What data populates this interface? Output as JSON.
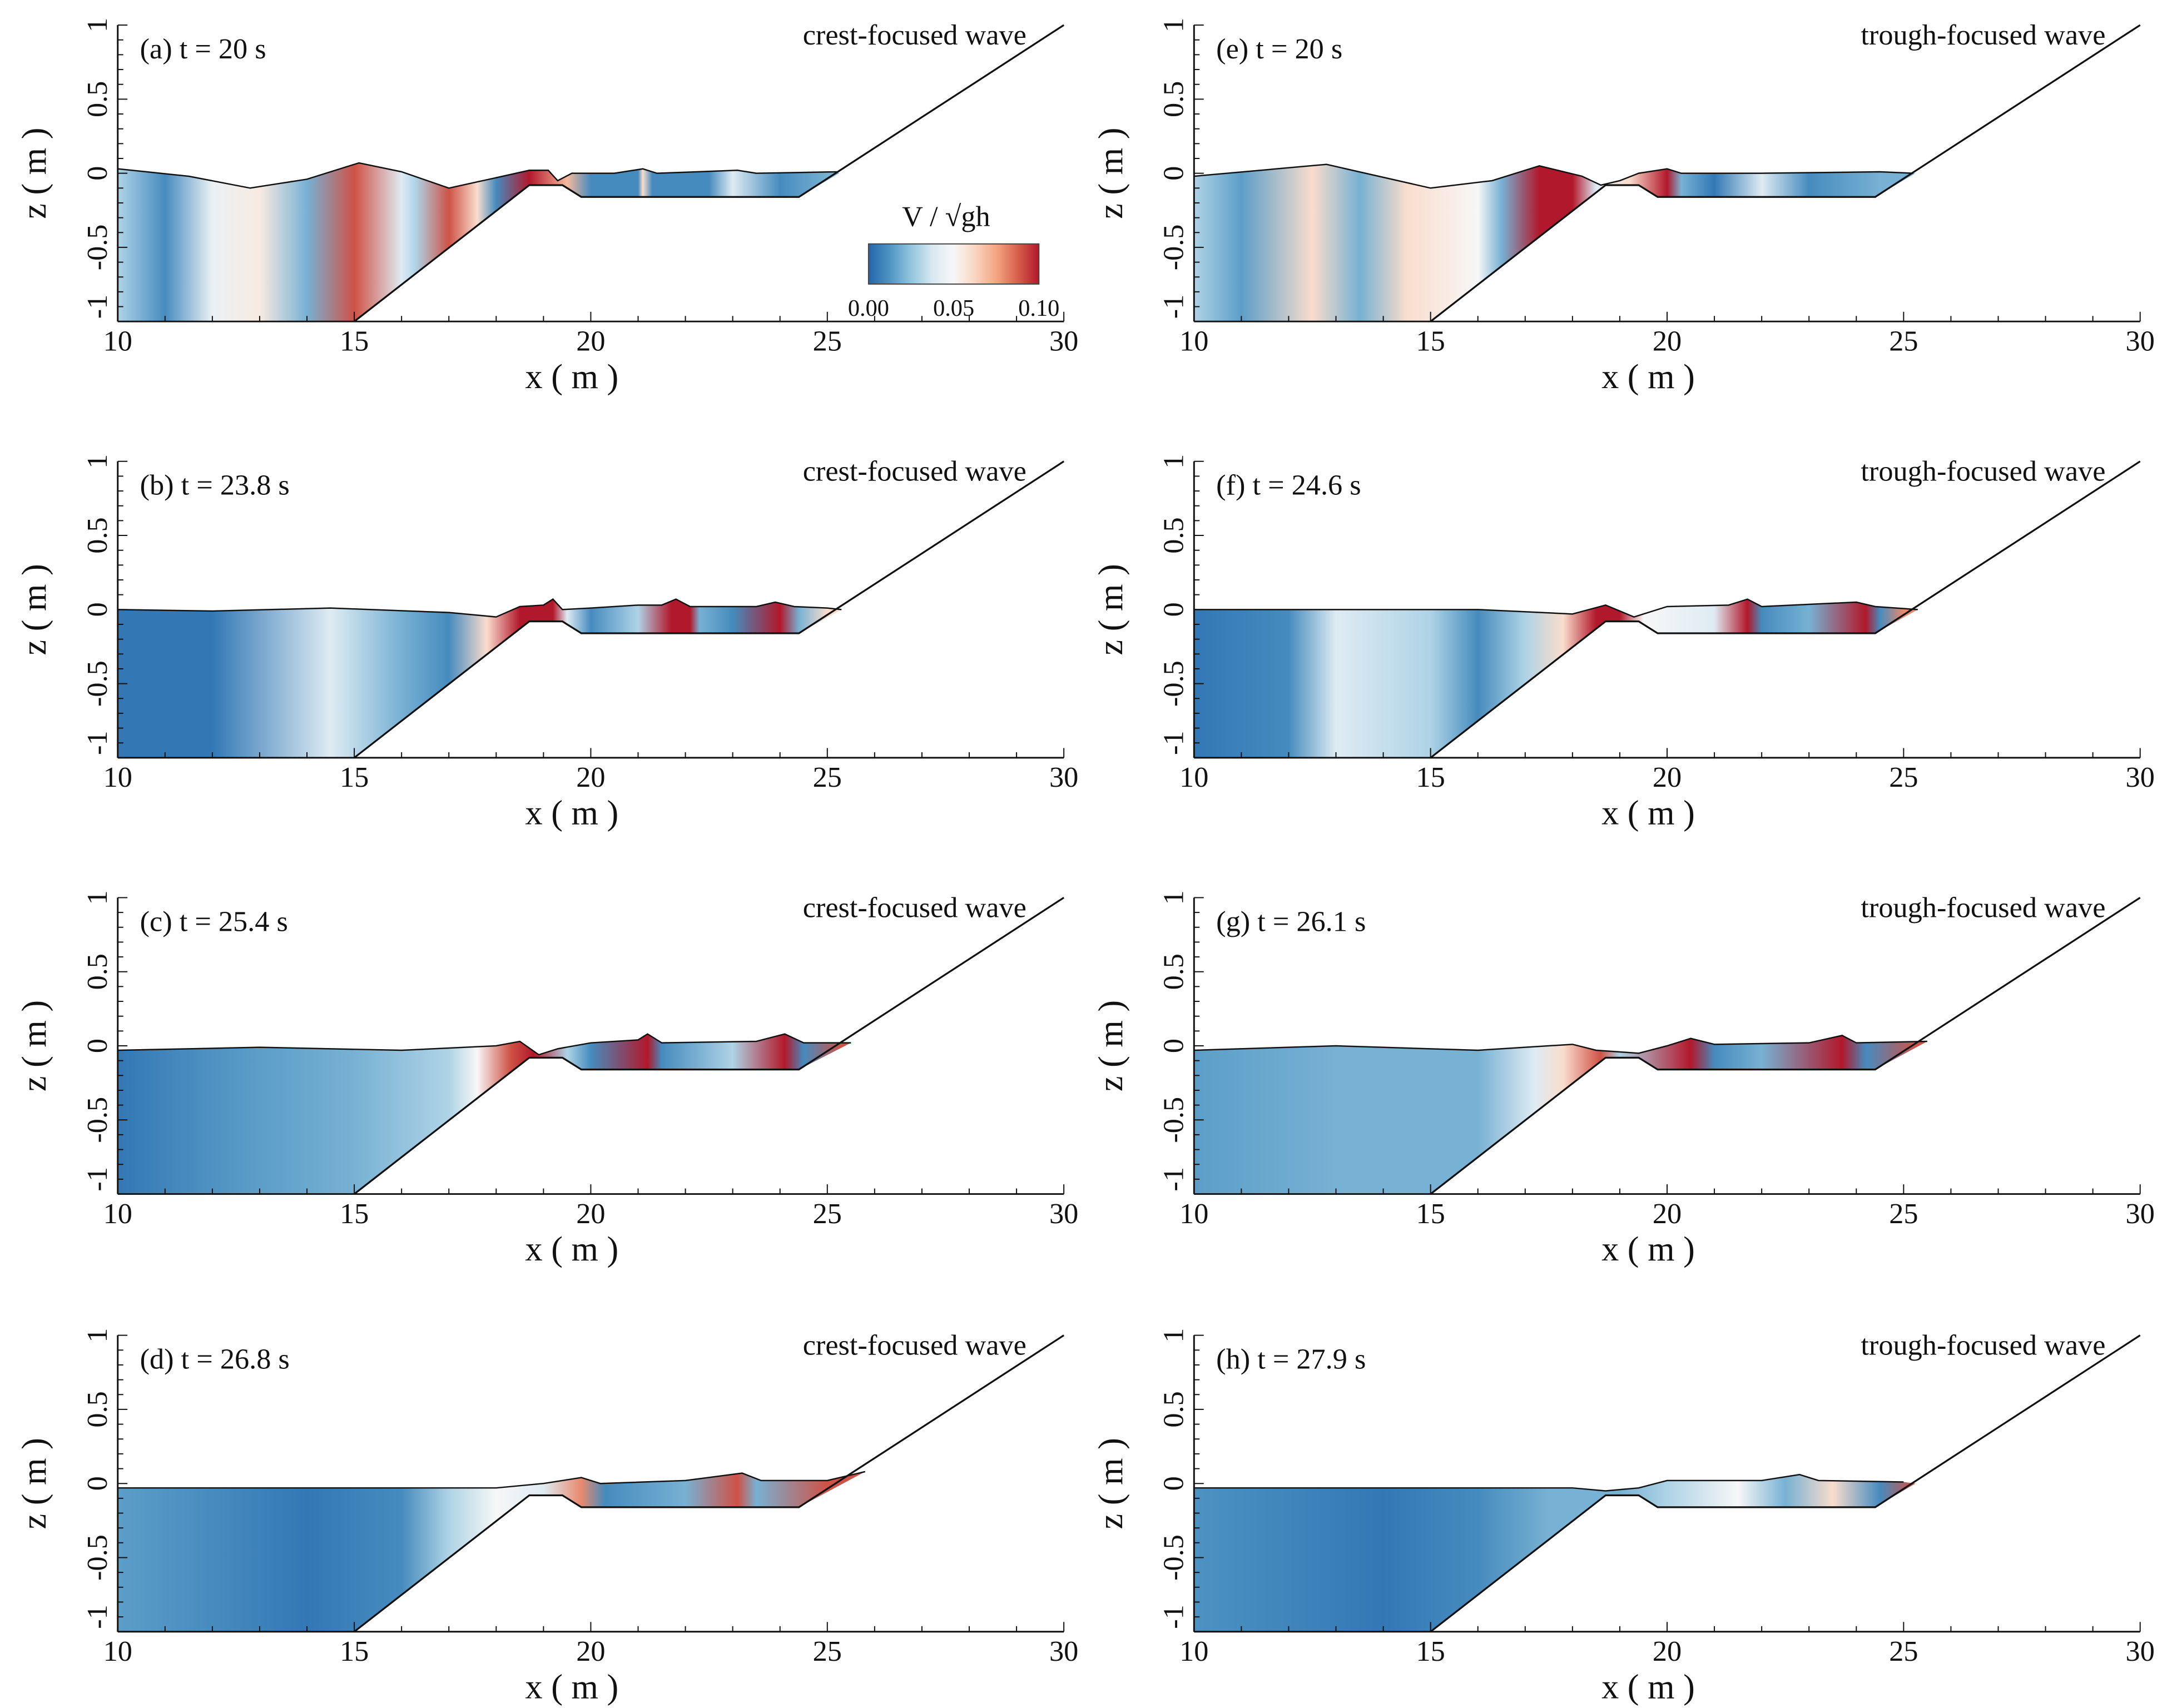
{
  "chart_data": {
    "type": "heatmap",
    "xlabel": "x ( m )",
    "ylabel": "z ( m )",
    "xlim": [
      10,
      30
    ],
    "ylim": [
      -1,
      1
    ],
    "xticks": [
      "10",
      "15",
      "20",
      "25",
      "30"
    ],
    "yticks": [
      "1",
      "0.5",
      "0",
      "-0.5",
      "-1"
    ],
    "colorbar": {
      "title": "V / √gh",
      "range": [
        0,
        0.1
      ],
      "ticks": [
        "0.00",
        "0.05",
        "0.10"
      ],
      "colors": [
        "#2166ac",
        "#4f94c3",
        "#92c5de",
        "#d8e8f2",
        "#f7f7f7",
        "#f9d6c3",
        "#f4a582",
        "#d6604d",
        "#b2182b"
      ]
    },
    "bathymetry": [
      [
        15,
        -1
      ],
      [
        18.7,
        -0.08
      ],
      [
        19.4,
        -0.08
      ],
      [
        19.8,
        -0.16
      ],
      [
        24.4,
        -0.16
      ],
      [
        30,
        1
      ]
    ],
    "panels": [
      {
        "label": "(a) t = 20 s",
        "wave": "crest-focused wave",
        "surface": [
          [
            10,
            0.03
          ],
          [
            11.5,
            -0.02
          ],
          [
            12.8,
            -0.1
          ],
          [
            14,
            -0.04
          ],
          [
            15.1,
            0.07
          ],
          [
            16,
            0.01
          ],
          [
            17,
            -0.1
          ],
          [
            18,
            -0.03
          ],
          [
            18.7,
            0.02
          ],
          [
            19.1,
            0.02
          ],
          [
            19.3,
            -0.05
          ],
          [
            19.6,
            0.0
          ],
          [
            20.5,
            0.0
          ],
          [
            21.1,
            0.03
          ],
          [
            21.4,
            0.0
          ],
          [
            23.1,
            0.02
          ],
          [
            23.5,
            0.0
          ],
          [
            25.2,
            0.01
          ]
        ],
        "velocity": [
          [
            10,
            0.03
          ],
          [
            11,
            0.01
          ],
          [
            12,
            0.045
          ],
          [
            13,
            0.055
          ],
          [
            14,
            0.02
          ],
          [
            15,
            0.09
          ],
          [
            16,
            0.04
          ],
          [
            16.3,
            0.03
          ],
          [
            17,
            0.09
          ],
          [
            17.6,
            0.06
          ],
          [
            18,
            0.01
          ],
          [
            18.7,
            0.1
          ],
          [
            19.5,
            0.07
          ],
          [
            20,
            0.01
          ],
          [
            21,
            0.01
          ],
          [
            21.1,
            0.06
          ],
          [
            21.3,
            0.01
          ],
          [
            22.5,
            0.01
          ],
          [
            23,
            0.04
          ],
          [
            24,
            0.01
          ],
          [
            25,
            0.02
          ]
        ]
      },
      {
        "label": "(b) t = 23.8 s",
        "wave": "crest-focused wave",
        "surface": [
          [
            10,
            0.0
          ],
          [
            12,
            -0.01
          ],
          [
            14.5,
            0.01
          ],
          [
            17,
            -0.02
          ],
          [
            18,
            -0.05
          ],
          [
            18.5,
            0.02
          ],
          [
            19.0,
            0.03
          ],
          [
            19.2,
            0.07
          ],
          [
            19.4,
            0.0
          ],
          [
            20,
            0.01
          ],
          [
            21,
            0.03
          ],
          [
            21.5,
            0.03
          ],
          [
            21.8,
            0.07
          ],
          [
            22.1,
            0.02
          ],
          [
            23.5,
            0.02
          ],
          [
            23.9,
            0.05
          ],
          [
            24.3,
            0.02
          ],
          [
            25,
            0.01
          ],
          [
            25.3,
            0.0
          ]
        ],
        "velocity": [
          [
            10,
            0.005
          ],
          [
            12,
            0.005
          ],
          [
            14.5,
            0.04
          ],
          [
            16,
            0.02
          ],
          [
            17,
            0.01
          ],
          [
            17.8,
            0.06
          ],
          [
            18.5,
            0.1
          ],
          [
            19.2,
            0.1
          ],
          [
            19.5,
            0.04
          ],
          [
            20,
            0.01
          ],
          [
            21,
            0.03
          ],
          [
            21.7,
            0.1
          ],
          [
            22.1,
            0.1
          ],
          [
            22.3,
            0.02
          ],
          [
            23,
            0.01
          ],
          [
            24,
            0.1
          ],
          [
            24.4,
            0.02
          ],
          [
            25,
            0.06
          ]
        ]
      },
      {
        "label": "(c) t = 25.4 s",
        "wave": "crest-focused wave",
        "surface": [
          [
            10,
            -0.03
          ],
          [
            13,
            -0.01
          ],
          [
            16,
            -0.03
          ],
          [
            18,
            0.0
          ],
          [
            18.5,
            0.03
          ],
          [
            18.9,
            -0.06
          ],
          [
            19.3,
            -0.02
          ],
          [
            20,
            0.02
          ],
          [
            21,
            0.04
          ],
          [
            21.2,
            0.08
          ],
          [
            21.5,
            0.02
          ],
          [
            23.5,
            0.03
          ],
          [
            24.1,
            0.08
          ],
          [
            24.5,
            0.02
          ],
          [
            25.5,
            0.02
          ]
        ],
        "velocity": [
          [
            10,
            0.005
          ],
          [
            13,
            0.015
          ],
          [
            15,
            0.02
          ],
          [
            17,
            0.03
          ],
          [
            17.6,
            0.05
          ],
          [
            18.3,
            0.09
          ],
          [
            18.8,
            0.1
          ],
          [
            19.5,
            0.03
          ],
          [
            20,
            0.01
          ],
          [
            21.2,
            0.1
          ],
          [
            21.5,
            0.01
          ],
          [
            23,
            0.03
          ],
          [
            24.1,
            0.1
          ],
          [
            24.5,
            0.01
          ],
          [
            25.3,
            0.09
          ]
        ]
      },
      {
        "label": "(d) t = 26.8 s",
        "wave": "crest-focused wave",
        "surface": [
          [
            10,
            -0.03
          ],
          [
            15,
            -0.03
          ],
          [
            18,
            -0.03
          ],
          [
            19,
            0.0
          ],
          [
            19.8,
            0.04
          ],
          [
            20.2,
            0.0
          ],
          [
            22,
            0.02
          ],
          [
            23.2,
            0.07
          ],
          [
            23.6,
            0.02
          ],
          [
            25,
            0.02
          ],
          [
            25.8,
            0.08
          ]
        ],
        "velocity": [
          [
            10,
            0.015
          ],
          [
            14,
            0.005
          ],
          [
            16,
            0.01
          ],
          [
            17,
            0.03
          ],
          [
            18,
            0.05
          ],
          [
            19,
            0.04
          ],
          [
            19.8,
            0.08
          ],
          [
            20.3,
            0.01
          ],
          [
            22,
            0.02
          ],
          [
            23.1,
            0.09
          ],
          [
            23.5,
            0.02
          ],
          [
            25,
            0.09
          ]
        ]
      },
      {
        "label": "(e) t = 20 s",
        "wave": "trough-focused wave",
        "surface": [
          [
            10,
            -0.02
          ],
          [
            12.8,
            0.06
          ],
          [
            15,
            -0.1
          ],
          [
            16.3,
            -0.05
          ],
          [
            17.3,
            0.05
          ],
          [
            18.2,
            -0.02
          ],
          [
            18.6,
            -0.08
          ],
          [
            19.0,
            -0.05
          ],
          [
            19.4,
            0.0
          ],
          [
            20,
            0.03
          ],
          [
            20.3,
            0.0
          ],
          [
            22,
            0.0
          ],
          [
            24.5,
            0.01
          ],
          [
            25.2,
            0.0
          ]
        ],
        "velocity": [
          [
            10,
            0.03
          ],
          [
            11,
            0.015
          ],
          [
            12.5,
            0.06
          ],
          [
            13.5,
            0.02
          ],
          [
            14.5,
            0.06
          ],
          [
            16,
            0.05
          ],
          [
            16.5,
            0.02
          ],
          [
            17.3,
            0.1
          ],
          [
            18,
            0.1
          ],
          [
            18.5,
            0.04
          ],
          [
            19.2,
            0.06
          ],
          [
            20,
            0.1
          ],
          [
            20.3,
            0.02
          ],
          [
            21,
            0.005
          ],
          [
            22,
            0.04
          ],
          [
            23,
            0.01
          ],
          [
            24.5,
            0.02
          ]
        ]
      },
      {
        "label": "(f) t = 24.6 s",
        "wave": "trough-focused wave",
        "surface": [
          [
            10,
            0.0
          ],
          [
            13,
            0.0
          ],
          [
            16,
            0.0
          ],
          [
            18,
            -0.03
          ],
          [
            18.7,
            0.03
          ],
          [
            19.3,
            -0.05
          ],
          [
            20,
            0.02
          ],
          [
            21.3,
            0.03
          ],
          [
            21.7,
            0.07
          ],
          [
            22,
            0.02
          ],
          [
            24,
            0.05
          ],
          [
            24.4,
            0.02
          ],
          [
            25.3,
            0.0
          ]
        ],
        "velocity": [
          [
            10,
            0.005
          ],
          [
            12,
            0.01
          ],
          [
            13,
            0.04
          ],
          [
            15,
            0.03
          ],
          [
            16,
            0.01
          ],
          [
            17,
            0.03
          ],
          [
            17.8,
            0.06
          ],
          [
            18.5,
            0.1
          ],
          [
            19,
            0.1
          ],
          [
            19.5,
            0.05
          ],
          [
            21,
            0.04
          ],
          [
            21.7,
            0.1
          ],
          [
            22,
            0.01
          ],
          [
            23,
            0.02
          ],
          [
            24.2,
            0.1
          ],
          [
            24.5,
            0.01
          ],
          [
            25,
            0.08
          ]
        ]
      },
      {
        "label": "(g) t = 26.1 s",
        "wave": "trough-focused wave",
        "surface": [
          [
            10,
            -0.03
          ],
          [
            13,
            0.0
          ],
          [
            16,
            -0.03
          ],
          [
            18,
            0.01
          ],
          [
            18.5,
            -0.03
          ],
          [
            19.4,
            -0.05
          ],
          [
            20,
            0.0
          ],
          [
            20.5,
            0.05
          ],
          [
            21,
            0.01
          ],
          [
            23,
            0.02
          ],
          [
            23.7,
            0.07
          ],
          [
            24,
            0.02
          ],
          [
            25.5,
            0.03
          ]
        ],
        "velocity": [
          [
            10,
            0.015
          ],
          [
            13,
            0.02
          ],
          [
            16,
            0.02
          ],
          [
            17.2,
            0.04
          ],
          [
            17.8,
            0.06
          ],
          [
            18.6,
            0.09
          ],
          [
            19,
            0.03
          ],
          [
            20.5,
            0.1
          ],
          [
            21,
            0.01
          ],
          [
            22,
            0.02
          ],
          [
            23.7,
            0.1
          ],
          [
            24.2,
            0.01
          ],
          [
            25.3,
            0.09
          ]
        ]
      },
      {
        "label": "(h) t = 27.9 s",
        "wave": "trough-focused wave",
        "surface": [
          [
            10,
            -0.03
          ],
          [
            15,
            -0.03
          ],
          [
            18,
            -0.03
          ],
          [
            18.7,
            -0.05
          ],
          [
            19.4,
            -0.03
          ],
          [
            20,
            0.02
          ],
          [
            22,
            0.02
          ],
          [
            22.8,
            0.06
          ],
          [
            23.2,
            0.02
          ],
          [
            25,
            0.01
          ]
        ],
        "velocity": [
          [
            10,
            0.012
          ],
          [
            14,
            0.005
          ],
          [
            16,
            0.01
          ],
          [
            17.5,
            0.02
          ],
          [
            19,
            0.02
          ],
          [
            20,
            0.03
          ],
          [
            21.5,
            0.05
          ],
          [
            22.5,
            0.02
          ],
          [
            23.5,
            0.06
          ],
          [
            24.5,
            0.01
          ],
          [
            25.2,
            0.09
          ]
        ]
      }
    ]
  }
}
